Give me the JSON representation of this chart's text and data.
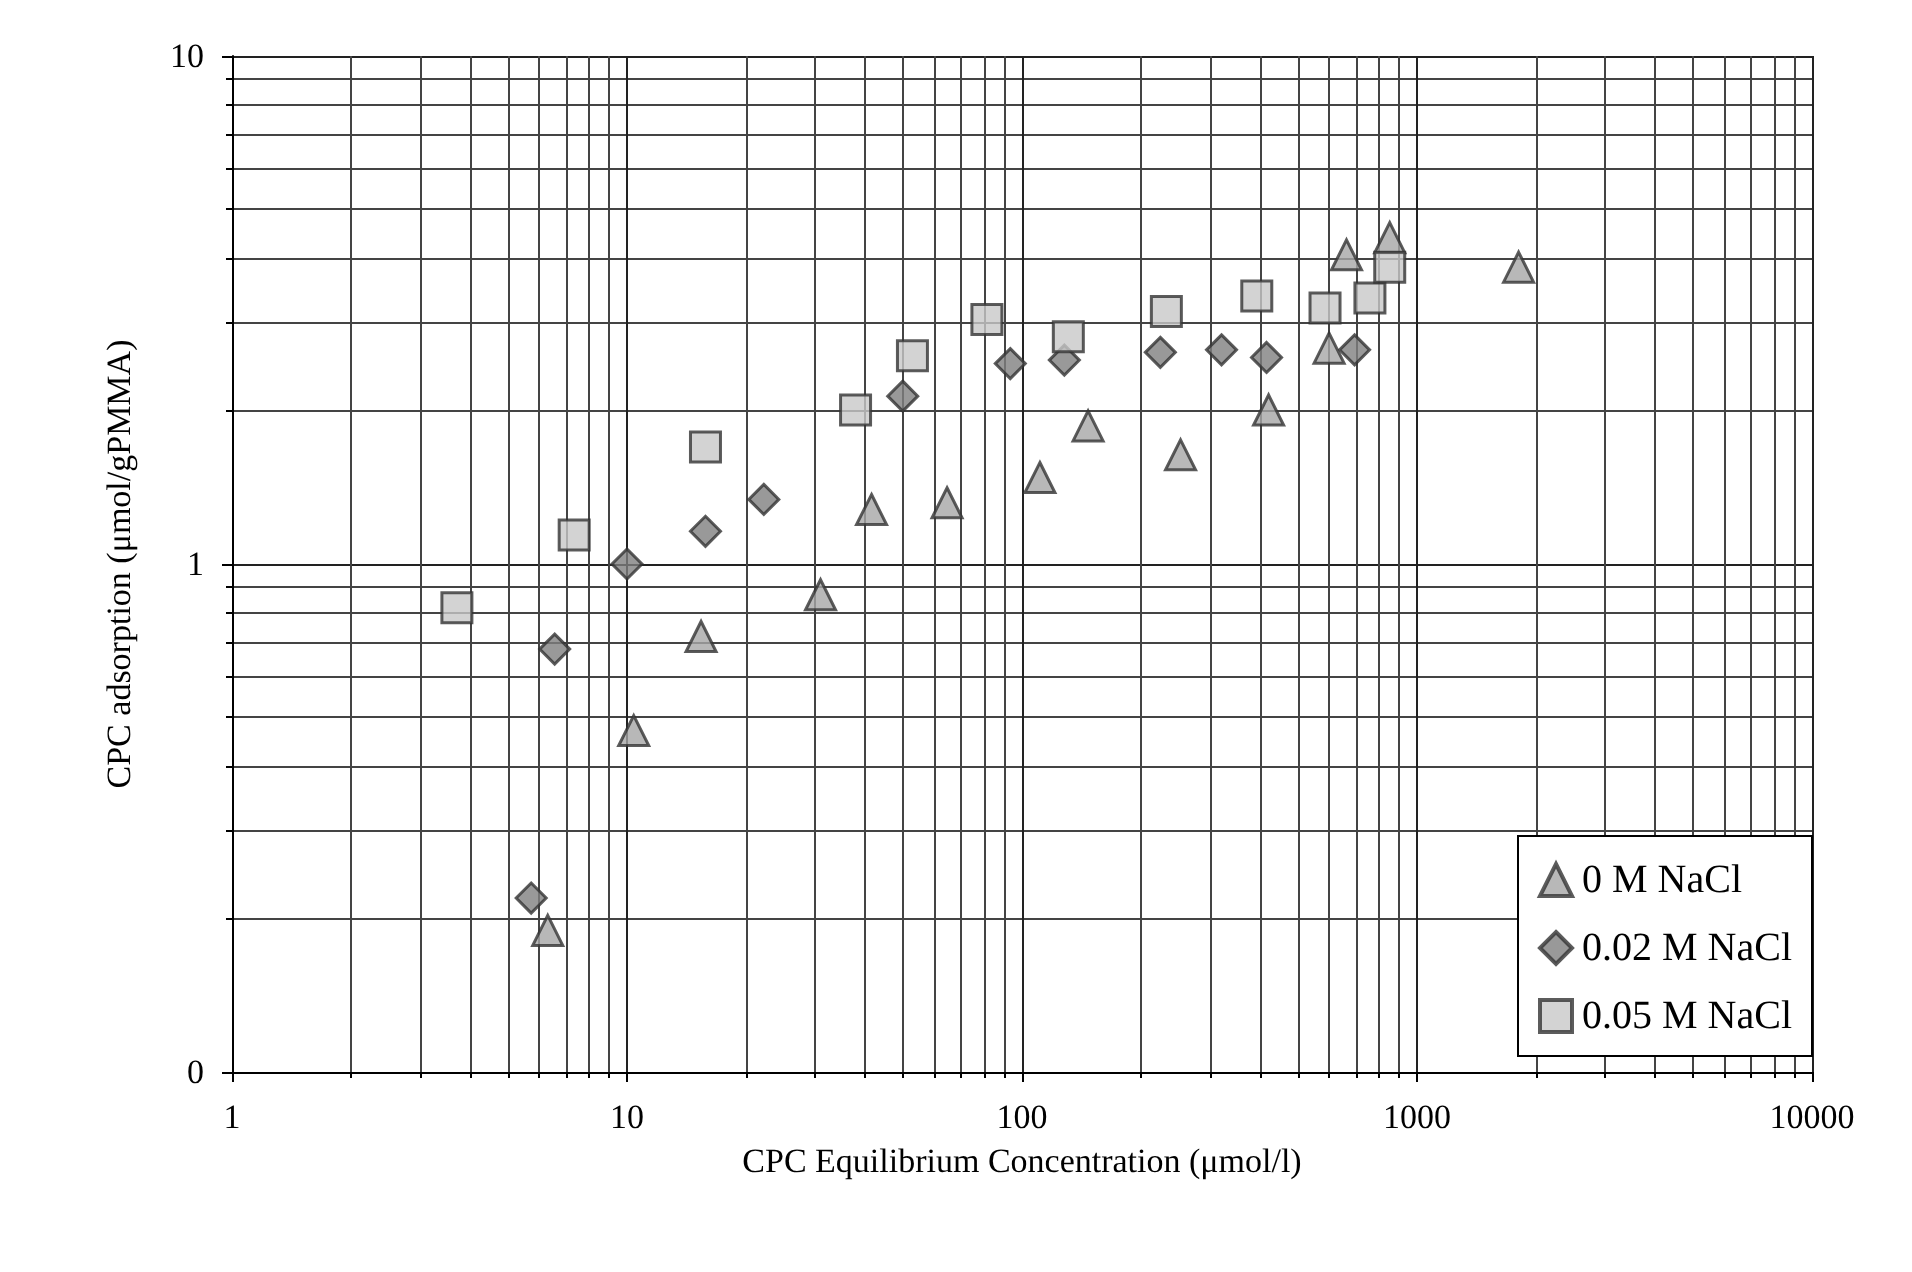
{
  "chart_data": {
    "type": "scatter",
    "xlabel": "CPC Equilibrium Concentration (μmol/l)",
    "ylabel": "CPC adsorption (μmol/gPMMA)",
    "log": "xy",
    "grid": true,
    "legend": "bottom right",
    "xlim": [
      1,
      10000
    ],
    "xticks": [
      1,
      10,
      100,
      1000,
      10000
    ],
    "ylim": [
      0.1,
      10
    ],
    "yticks": [
      {
        "value": 0.1,
        "label": "0"
      },
      1,
      10
    ],
    "series": [
      {
        "name": "0 M NaCl",
        "marker": "triangle",
        "color": "#a6a6a6",
        "x": [
          6.3,
          10.4,
          15.4,
          30.9,
          41.6,
          64.6,
          111,
          147,
          252,
          421,
          599,
          663,
          853,
          1808
        ],
        "values": [
          0.19,
          0.47,
          0.72,
          0.87,
          1.28,
          1.32,
          1.48,
          1.87,
          1.64,
          2.01,
          2.66,
          4.06,
          4.39,
          3.84
        ]
      },
      {
        "name": "0.02 M NaCl",
        "marker": "diamond",
        "color": "#808080",
        "x": [
          5.72,
          6.56,
          10,
          15.8,
          22.2,
          49.9,
          93.4,
          128,
          224,
          320,
          416,
          695
        ],
        "values": [
          0.22,
          0.68,
          1.0,
          1.16,
          1.34,
          2.14,
          2.48,
          2.52,
          2.61,
          2.64,
          2.55,
          2.64
        ]
      },
      {
        "name": "0.05 M NaCl",
        "marker": "square",
        "color": "#c8c8c8",
        "x": [
          3.71,
          7.35,
          15.8,
          37.9,
          52.8,
          81.5,
          131,
          232,
          393,
          585,
          760,
          853
        ],
        "values": [
          0.82,
          1.14,
          1.7,
          2.01,
          2.57,
          3.03,
          2.8,
          3.14,
          3.37,
          3.19,
          3.34,
          3.84
        ]
      }
    ]
  }
}
